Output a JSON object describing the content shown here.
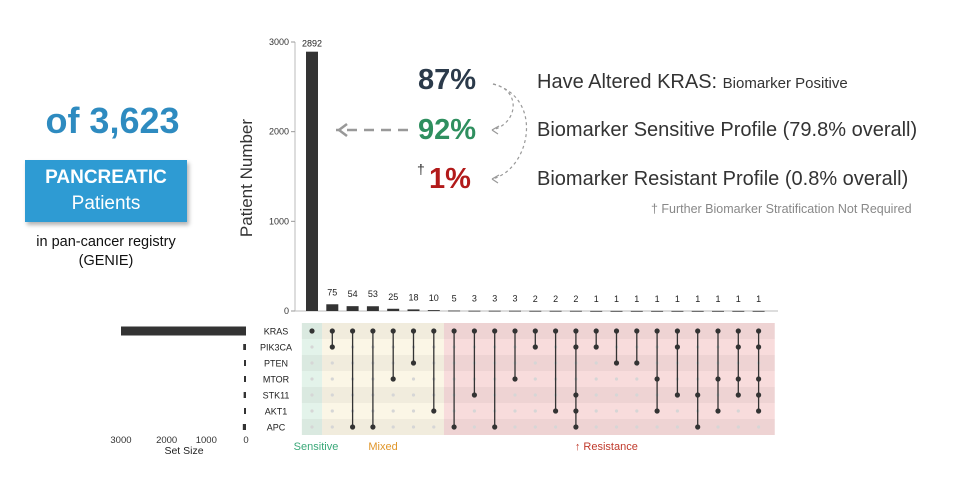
{
  "left_panel": {
    "total_label": "of 3,623",
    "cohort_line1": "PANCREATIC",
    "cohort_line2": "Patients",
    "registry_line1": "in pan-cancer registry",
    "registry_line2": "(GENIE)"
  },
  "callouts": {
    "kras_pct": "87%",
    "kras_main": "Have Altered KRAS:",
    "kras_sub": "Biomarker Positive",
    "sensitive_pct": "92%",
    "sensitive_desc": "Biomarker Sensitive Profile (79.8% overall)",
    "resistant_dagger": "†",
    "resistant_pct": "1%",
    "resistant_desc": "Biomarker Resistant Profile (0.8% overall)",
    "footnote": "† Further Biomarker Stratification Not Required",
    "colors": {
      "dark": "#2b3a4a",
      "sensitive": "#2f8f5f",
      "resistant": "#b21a1a"
    }
  },
  "chart_data": {
    "type": "bar",
    "ylabel": "Patient Number",
    "ylim": [
      0,
      3000
    ],
    "yticks": [
      0,
      1000,
      2000,
      3000
    ],
    "values": [
      2892,
      75,
      54,
      53,
      25,
      18,
      10,
      5,
      3,
      3,
      3,
      2,
      2,
      2,
      1,
      1,
      1,
      1,
      1,
      1,
      1,
      1,
      1
    ],
    "genes": [
      "KRAS",
      "PIK3CA",
      "PTEN",
      "MTOR",
      "STK11",
      "AKT1",
      "APC"
    ],
    "intersections": [
      [
        "KRAS"
      ],
      [
        "KRAS",
        "PIK3CA"
      ],
      [
        "KRAS",
        "APC"
      ],
      [
        "KRAS",
        "APC"
      ],
      [
        "KRAS",
        "MTOR"
      ],
      [
        "KRAS",
        "PTEN"
      ],
      [
        "KRAS",
        "AKT1"
      ],
      [
        "KRAS",
        "APC"
      ],
      [
        "KRAS",
        "STK11"
      ],
      [
        "KRAS",
        "APC"
      ],
      [
        "KRAS",
        "MTOR"
      ],
      [
        "KRAS",
        "PIK3CA"
      ],
      [
        "KRAS",
        "AKT1"
      ],
      [
        "KRAS",
        "PIK3CA",
        "STK11",
        "AKT1",
        "APC"
      ],
      [
        "KRAS",
        "PIK3CA"
      ],
      [
        "KRAS",
        "PTEN"
      ],
      [
        "KRAS",
        "PTEN"
      ],
      [
        "KRAS",
        "MTOR",
        "AKT1"
      ],
      [
        "KRAS",
        "PIK3CA",
        "STK11"
      ],
      [
        "KRAS",
        "STK11",
        "APC"
      ],
      [
        "KRAS",
        "MTOR",
        "AKT1"
      ],
      [
        "KRAS",
        "PIK3CA",
        "MTOR",
        "STK11"
      ],
      [
        "KRAS",
        "PIK3CA",
        "MTOR",
        "STK11",
        "AKT1"
      ]
    ],
    "set_size": {
      "values": [
        3150,
        70,
        40,
        35,
        60,
        30,
        80
      ],
      "xlabel": "Set Size",
      "xticks": [
        3000,
        2000,
        1000,
        0
      ]
    },
    "groups": [
      {
        "label": "Sensitive",
        "start": 0,
        "end": 0,
        "color": "#3aa878",
        "fill": "#e3f3ea"
      },
      {
        "label": "Mixed",
        "start": 1,
        "end": 6,
        "color": "#e0962a",
        "fill": "#fbf6e6"
      },
      {
        "label": "↑ Resistance",
        "start": 7,
        "end": 22,
        "color": "#c0392b",
        "fill": "#f8dcdc"
      }
    ]
  }
}
